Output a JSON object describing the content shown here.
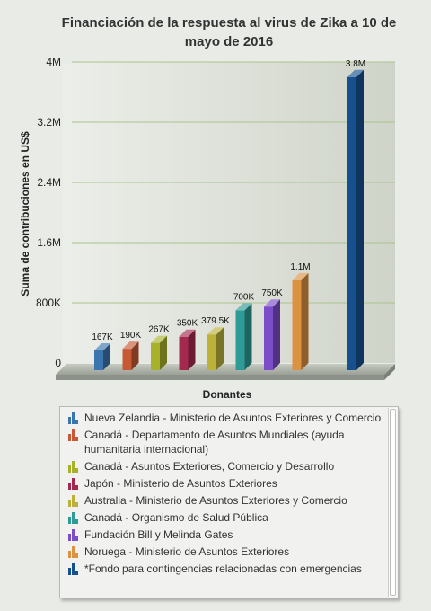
{
  "chart_data": {
    "type": "bar",
    "title_lines": [
      "Financiación de la respuesta al virus de Zika a 10 de",
      "mayo de 2016"
    ],
    "xlabel": "Donantes",
    "ylabel": "Suma de contribuciones en US$",
    "ylim": [
      0,
      4000000
    ],
    "yticks": [
      0,
      800000,
      1600000,
      2400000,
      3200000,
      4000000
    ],
    "ytick_labels": [
      "0",
      "800K",
      "1.6M",
      "2.4M",
      "3.2M",
      "4M"
    ],
    "grid": true,
    "legend_position": "bottom",
    "categories": [
      "Nueva Zelandia - Ministerio de Asuntos Exteriores y Comercio",
      "Canadá - Departamento de Asuntos Mundiales (ayuda humanitaria internacional)",
      "Canadá - Asuntos Exteriores, Comercio y Desarrollo",
      "Japón - Ministerio de Asuntos Exteriores",
      "Australia - Ministerio de Asuntos Exteriores y Comercio",
      "Canadá - Organismo de Salud Pública",
      "Fundación Bill y Melinda Gates",
      "Noruega - Ministerio de Asuntos Exteriores",
      "*Fondo para contingencias relacionadas con emergencias"
    ],
    "values": [
      167000,
      190000,
      267000,
      350000,
      379500,
      700000,
      750000,
      1100000,
      3800000
    ],
    "data_labels": [
      "167K",
      "190K",
      "267K",
      "350K",
      "379.5K",
      "700K",
      "750K",
      "1.1M",
      "3.8M"
    ],
    "colors": [
      "#3c75ad",
      "#c75a35",
      "#a7b22a",
      "#a4294f",
      "#bcb23a",
      "#2e9b96",
      "#7c4dc8",
      "#dc9240",
      "#17508f"
    ]
  }
}
